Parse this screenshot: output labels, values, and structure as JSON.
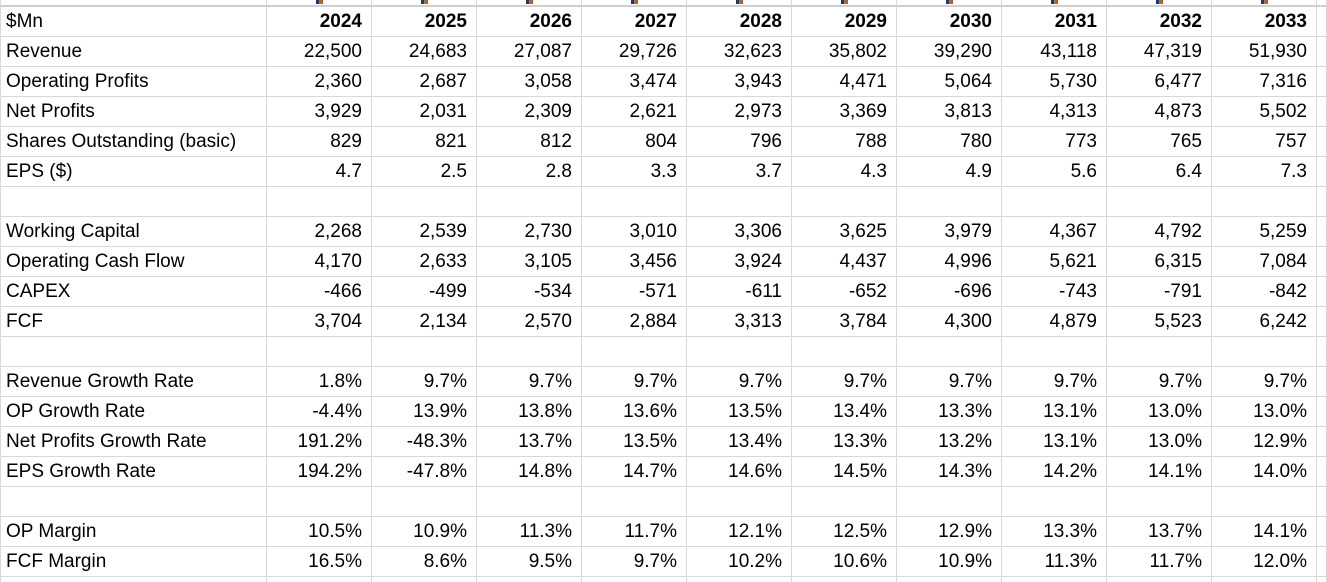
{
  "colors": {
    "grid_line": "#d8d8d8",
    "grid_line_strong": "#cfcfcf",
    "text": "#000000",
    "artifact_navy": "#203864",
    "artifact_gray": "#7f7f7f",
    "artifact_orange": "#c55a11"
  },
  "table": {
    "unit_label": "$Mn",
    "years": [
      "2024",
      "2025",
      "2026",
      "2027",
      "2028",
      "2029",
      "2030",
      "2031",
      "2032",
      "2033"
    ],
    "rows": [
      {
        "label": "Revenue",
        "values": [
          "22,500",
          "24,683",
          "27,087",
          "29,726",
          "32,623",
          "35,802",
          "39,290",
          "43,118",
          "47,319",
          "51,930"
        ]
      },
      {
        "label": "Operating Profits",
        "values": [
          "2,360",
          "2,687",
          "3,058",
          "3,474",
          "3,943",
          "4,471",
          "5,064",
          "5,730",
          "6,477",
          "7,316"
        ]
      },
      {
        "label": "Net Profits",
        "values": [
          "3,929",
          "2,031",
          "2,309",
          "2,621",
          "2,973",
          "3,369",
          "3,813",
          "4,313",
          "4,873",
          "5,502"
        ]
      },
      {
        "label": "Shares Outstanding (basic)",
        "values": [
          "829",
          "821",
          "812",
          "804",
          "796",
          "788",
          "780",
          "773",
          "765",
          "757"
        ]
      },
      {
        "label": "EPS ($)",
        "values": [
          "4.7",
          "2.5",
          "2.8",
          "3.3",
          "3.7",
          "4.3",
          "4.9",
          "5.6",
          "6.4",
          "7.3"
        ]
      },
      {
        "label": "",
        "values": [
          "",
          "",
          "",
          "",
          "",
          "",
          "",
          "",
          "",
          ""
        ]
      },
      {
        "label": "Working Capital",
        "values": [
          "2,268",
          "2,539",
          "2,730",
          "3,010",
          "3,306",
          "3,625",
          "3,979",
          "4,367",
          "4,792",
          "5,259"
        ]
      },
      {
        "label": "Operating Cash Flow",
        "values": [
          "4,170",
          "2,633",
          "3,105",
          "3,456",
          "3,924",
          "4,437",
          "4,996",
          "5,621",
          "6,315",
          "7,084"
        ]
      },
      {
        "label": "CAPEX",
        "values": [
          "-466",
          "-499",
          "-534",
          "-571",
          "-611",
          "-652",
          "-696",
          "-743",
          "-791",
          "-842"
        ]
      },
      {
        "label": "FCF",
        "values": [
          "3,704",
          "2,134",
          "2,570",
          "2,884",
          "3,313",
          "3,784",
          "4,300",
          "4,879",
          "5,523",
          "6,242"
        ]
      },
      {
        "label": "",
        "values": [
          "",
          "",
          "",
          "",
          "",
          "",
          "",
          "",
          "",
          ""
        ]
      },
      {
        "label": "Revenue Growth Rate",
        "values": [
          "1.8%",
          "9.7%",
          "9.7%",
          "9.7%",
          "9.7%",
          "9.7%",
          "9.7%",
          "9.7%",
          "9.7%",
          "9.7%"
        ]
      },
      {
        "label": "OP Growth Rate",
        "values": [
          "-4.4%",
          "13.9%",
          "13.8%",
          "13.6%",
          "13.5%",
          "13.4%",
          "13.3%",
          "13.1%",
          "13.0%",
          "13.0%"
        ]
      },
      {
        "label": "Net Profits Growth Rate",
        "values": [
          "191.2%",
          "-48.3%",
          "13.7%",
          "13.5%",
          "13.4%",
          "13.3%",
          "13.2%",
          "13.1%",
          "13.0%",
          "12.9%"
        ]
      },
      {
        "label": "EPS Growth Rate",
        "values": [
          "194.2%",
          "-47.8%",
          "14.8%",
          "14.7%",
          "14.6%",
          "14.5%",
          "14.3%",
          "14.2%",
          "14.1%",
          "14.0%"
        ]
      },
      {
        "label": "",
        "values": [
          "",
          "",
          "",
          "",
          "",
          "",
          "",
          "",
          "",
          ""
        ]
      },
      {
        "label": "OP Margin",
        "values": [
          "10.5%",
          "10.9%",
          "11.3%",
          "11.7%",
          "12.1%",
          "12.5%",
          "12.9%",
          "13.3%",
          "13.7%",
          "14.1%"
        ]
      },
      {
        "label": "FCF Margin",
        "values": [
          "16.5%",
          "8.6%",
          "9.5%",
          "9.7%",
          "10.2%",
          "10.6%",
          "10.9%",
          "11.3%",
          "11.7%",
          "12.0%"
        ]
      }
    ]
  }
}
